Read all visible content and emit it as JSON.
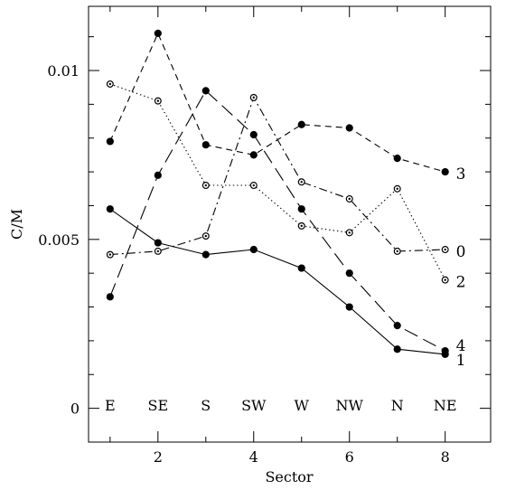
{
  "chart_data": {
    "type": "line",
    "xlabel": "Sector",
    "ylabel": "C/M",
    "xlim": [
      0.55,
      8.95
    ],
    "ylim": [
      -0.001,
      0.0119
    ],
    "x_ticks_major": [
      2,
      4,
      6,
      8
    ],
    "y_ticks_major": [
      0,
      0.005,
      0.01
    ],
    "y_tick_labels": [
      "0",
      "0.005",
      "0.01"
    ],
    "x": [
      1,
      2,
      3,
      4,
      5,
      6,
      7,
      8
    ],
    "sector_labels": [
      "E",
      "SE",
      "S",
      "SW",
      "W",
      "NW",
      "N",
      "NE"
    ],
    "sector_label_y": 0.0001,
    "grid": false,
    "series": [
      {
        "name": "1",
        "line_style": "solid",
        "marker": "filled",
        "values": [
          0.0059,
          0.0049,
          0.00455,
          0.0047,
          0.00415,
          0.003,
          0.00175,
          0.0016
        ]
      },
      {
        "name": "4",
        "line_style": "long-dash",
        "marker": "filled",
        "values": [
          0.0033,
          0.0069,
          0.0094,
          0.0081,
          0.0059,
          0.004,
          0.00245,
          0.0017
        ]
      },
      {
        "name": "3",
        "line_style": "short-dash",
        "marker": "filled",
        "values": [
          0.0079,
          0.0111,
          0.0078,
          0.0075,
          0.0084,
          0.0083,
          0.0074,
          0.007
        ]
      },
      {
        "name": "0",
        "line_style": "dash-dot",
        "marker": "open",
        "values": [
          0.00455,
          0.00465,
          0.0051,
          0.0092,
          0.0067,
          0.0062,
          0.00465,
          0.0047
        ]
      },
      {
        "name": "2",
        "line_style": "dotted",
        "marker": "open",
        "values": [
          0.0096,
          0.0091,
          0.0066,
          0.0066,
          0.0054,
          0.0052,
          0.0065,
          0.0038
        ]
      }
    ]
  }
}
